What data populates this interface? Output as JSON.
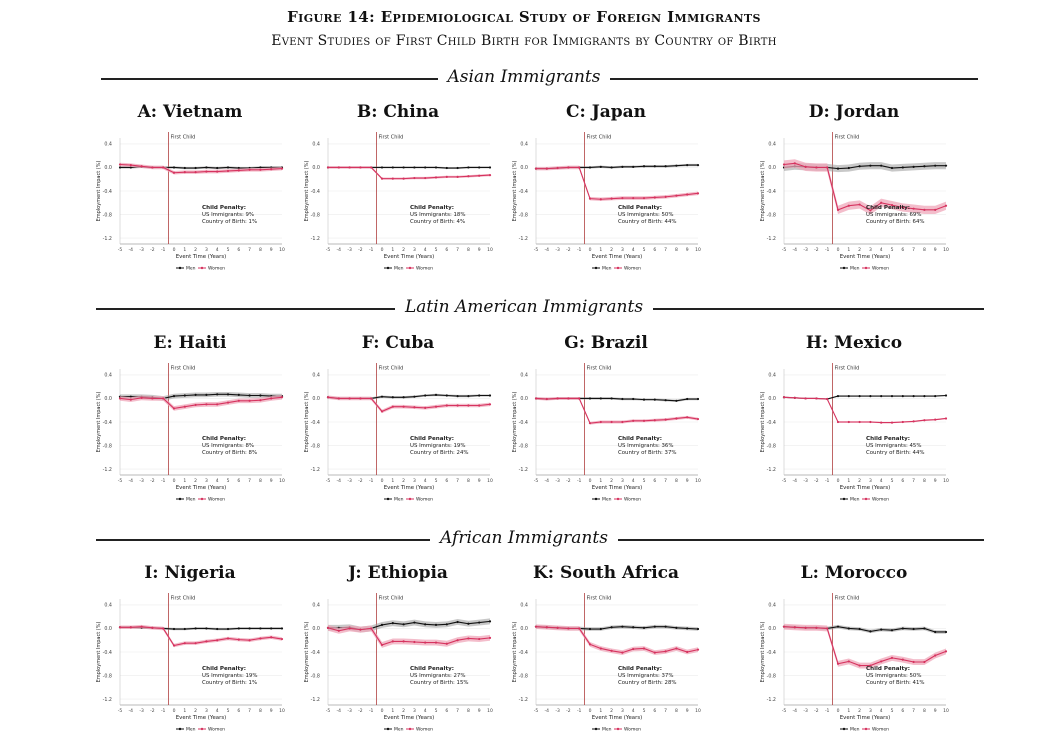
{
  "figure": {
    "title": "Figure 14: Epidemiological Study of Foreign Immigrants",
    "subtitle": "Event Studies of First Child Birth for Immigrants by Country of Birth"
  },
  "sections": [
    {
      "label": "Asian Immigrants"
    },
    {
      "label": "Latin American Immigrants"
    },
    {
      "label": "African Immigrants"
    }
  ],
  "common": {
    "xlabel": "Event Time (Years)",
    "ylabel": "Employment Impact (%)",
    "first_child_label": "First Child",
    "penalty_title": "Child Penalty:",
    "legend_men": "Men",
    "legend_women": "Women",
    "x_ticks": [
      "-5",
      "-4",
      "-3",
      "-2",
      "-1",
      "0",
      "1",
      "2",
      "3",
      "4",
      "5",
      "6",
      "7",
      "8",
      "9",
      "10"
    ],
    "y_ticks": [
      "0.4",
      "0.0",
      "-0.4",
      "-0.8",
      "-1.2"
    ],
    "colors": {
      "men": "#111111",
      "women": "#d6335f",
      "women_band": "#efa7ba",
      "men_band": "#9a9a9a",
      "event_line": "#b04040"
    }
  },
  "chart_data": [
    {
      "type": "line",
      "panel": "A: Vietnam",
      "title": "A: Vietnam",
      "penalty_us": "US Immigrants: 9%",
      "penalty_cob": "Country of Birth: 1%",
      "ylim": [
        -1.3,
        0.5
      ],
      "x": [
        -5,
        -4,
        -3,
        -2,
        -1,
        0,
        1,
        2,
        3,
        4,
        5,
        6,
        7,
        8,
        9,
        10
      ],
      "series": [
        {
          "name": "Men",
          "values": [
            0.0,
            0.0,
            0.01,
            0.0,
            0.0,
            0.0,
            -0.01,
            -0.01,
            0.0,
            -0.01,
            0.0,
            -0.01,
            -0.01,
            0.0,
            0.0,
            0.0
          ],
          "band": 0.02
        },
        {
          "name": "Women",
          "values": [
            0.05,
            0.04,
            0.02,
            0.0,
            0.0,
            -0.09,
            -0.08,
            -0.08,
            -0.07,
            -0.07,
            -0.06,
            -0.05,
            -0.04,
            -0.04,
            -0.03,
            -0.02
          ],
          "band": 0.03
        }
      ]
    },
    {
      "type": "line",
      "panel": "B: China",
      "title": "B: China",
      "penalty_us": "US Immigrants: 18%",
      "penalty_cob": "Country of Birth: 4%",
      "ylim": [
        -1.3,
        0.5
      ],
      "x": [
        -5,
        -4,
        -3,
        -2,
        -1,
        0,
        1,
        2,
        3,
        4,
        5,
        6,
        7,
        8,
        9,
        10
      ],
      "series": [
        {
          "name": "Men",
          "values": [
            0.0,
            0.0,
            0.0,
            0.0,
            0.0,
            0.0,
            0.0,
            0.0,
            0.0,
            0.0,
            0.0,
            -0.01,
            -0.01,
            0.0,
            0.0,
            0.0
          ],
          "band": 0.015
        },
        {
          "name": "Women",
          "values": [
            0.0,
            0.0,
            0.0,
            0.0,
            0.0,
            -0.19,
            -0.19,
            -0.19,
            -0.18,
            -0.18,
            -0.17,
            -0.16,
            -0.16,
            -0.15,
            -0.14,
            -0.13
          ],
          "band": 0.02
        }
      ]
    },
    {
      "type": "line",
      "panel": "C: Japan",
      "title": "C: Japan",
      "penalty_us": "US Immigrants: 50%",
      "penalty_cob": "Country of Birth: 44%",
      "ylim": [
        -1.3,
        0.5
      ],
      "x": [
        -5,
        -4,
        -3,
        -2,
        -1,
        0,
        1,
        2,
        3,
        4,
        5,
        6,
        7,
        8,
        9,
        10
      ],
      "series": [
        {
          "name": "Men",
          "values": [
            -0.02,
            -0.02,
            -0.01,
            0.0,
            0.0,
            0.0,
            0.01,
            0.0,
            0.01,
            0.01,
            0.02,
            0.02,
            0.02,
            0.03,
            0.04,
            0.04
          ],
          "band": 0.02
        },
        {
          "name": "Women",
          "values": [
            -0.02,
            -0.02,
            -0.01,
            0.0,
            0.0,
            -0.53,
            -0.54,
            -0.53,
            -0.52,
            -0.52,
            -0.52,
            -0.51,
            -0.5,
            -0.48,
            -0.46,
            -0.44
          ],
          "band": 0.03
        }
      ]
    },
    {
      "type": "line",
      "panel": "D: Jordan",
      "title": "D: Jordan",
      "penalty_us": "US Immigrants: 69%",
      "penalty_cob": "Country of Birth: 64%",
      "ylim": [
        -1.3,
        0.5
      ],
      "x": [
        -5,
        -4,
        -3,
        -2,
        -1,
        0,
        1,
        2,
        3,
        4,
        5,
        6,
        7,
        8,
        9,
        10
      ],
      "series": [
        {
          "name": "Men",
          "values": [
            0.0,
            0.02,
            0.01,
            0.0,
            0.0,
            -0.02,
            -0.01,
            0.02,
            0.03,
            0.03,
            -0.01,
            0.0,
            0.01,
            0.02,
            0.03,
            0.03
          ],
          "band": 0.06
        },
        {
          "name": "Women",
          "values": [
            0.05,
            0.07,
            0.01,
            0.0,
            0.0,
            -0.72,
            -0.65,
            -0.63,
            -0.73,
            -0.6,
            -0.64,
            -0.68,
            -0.7,
            -0.72,
            -0.72,
            -0.65
          ],
          "band": 0.07
        }
      ]
    },
    {
      "type": "line",
      "panel": "E: Haiti",
      "title": "E: Haiti",
      "penalty_us": "US Immigrants: 8%",
      "penalty_cob": "Country of Birth: 8%",
      "ylim": [
        -1.3,
        0.5
      ],
      "x": [
        -5,
        -4,
        -3,
        -2,
        -1,
        0,
        1,
        2,
        3,
        4,
        5,
        6,
        7,
        8,
        9,
        10
      ],
      "series": [
        {
          "name": "Men",
          "values": [
            0.03,
            0.03,
            0.03,
            0.02,
            0.0,
            0.04,
            0.05,
            0.06,
            0.06,
            0.07,
            0.07,
            0.06,
            0.05,
            0.05,
            0.04,
            0.04
          ],
          "band": 0.04
        },
        {
          "name": "Women",
          "values": [
            0.0,
            -0.02,
            0.01,
            0.0,
            0.0,
            -0.17,
            -0.14,
            -0.11,
            -0.1,
            -0.1,
            -0.07,
            -0.04,
            -0.04,
            -0.03,
            0.0,
            0.02
          ],
          "band": 0.04
        }
      ]
    },
    {
      "type": "line",
      "panel": "F: Cuba",
      "title": "F: Cuba",
      "penalty_us": "US Immigrants: 19%",
      "penalty_cob": "Country of Birth: 24%",
      "ylim": [
        -1.3,
        0.5
      ],
      "x": [
        -5,
        -4,
        -3,
        -2,
        -1,
        0,
        1,
        2,
        3,
        4,
        5,
        6,
        7,
        8,
        9,
        10
      ],
      "series": [
        {
          "name": "Men",
          "values": [
            0.02,
            0.0,
            0.0,
            0.0,
            0.0,
            0.03,
            0.02,
            0.02,
            0.03,
            0.05,
            0.06,
            0.05,
            0.04,
            0.04,
            0.05,
            0.05
          ],
          "band": 0.02
        },
        {
          "name": "Women",
          "values": [
            0.02,
            0.0,
            0.0,
            0.0,
            0.0,
            -0.22,
            -0.14,
            -0.14,
            -0.15,
            -0.16,
            -0.14,
            -0.12,
            -0.12,
            -0.12,
            -0.12,
            -0.1
          ],
          "band": 0.03
        }
      ]
    },
    {
      "type": "line",
      "panel": "G: Brazil",
      "title": "G: Brazil",
      "penalty_us": "US Immigrants: 36%",
      "penalty_cob": "Country of Birth: 37%",
      "ylim": [
        -1.3,
        0.5
      ],
      "x": [
        -5,
        -4,
        -3,
        -2,
        -1,
        0,
        1,
        2,
        3,
        4,
        5,
        6,
        7,
        8,
        9,
        10
      ],
      "series": [
        {
          "name": "Men",
          "values": [
            0.0,
            -0.01,
            0.0,
            0.0,
            0.0,
            0.0,
            0.0,
            0.0,
            -0.01,
            -0.01,
            -0.02,
            -0.02,
            -0.03,
            -0.04,
            -0.01,
            -0.01
          ],
          "band": 0.02
        },
        {
          "name": "Women",
          "values": [
            0.0,
            -0.01,
            0.0,
            0.0,
            0.0,
            -0.42,
            -0.4,
            -0.4,
            -0.4,
            -0.38,
            -0.38,
            -0.37,
            -0.36,
            -0.34,
            -0.32,
            -0.35
          ],
          "band": 0.025
        }
      ]
    },
    {
      "type": "line",
      "panel": "H: Mexico",
      "title": "H: Mexico",
      "penalty_us": "US Immigrants: 45%",
      "penalty_cob": "Country of Birth: 44%",
      "ylim": [
        -1.3,
        0.5
      ],
      "x": [
        -5,
        -4,
        -3,
        -2,
        -1,
        0,
        1,
        2,
        3,
        4,
        5,
        6,
        7,
        8,
        9,
        10
      ],
      "series": [
        {
          "name": "Men",
          "values": [
            0.02,
            0.01,
            0.0,
            0.0,
            -0.01,
            0.04,
            0.04,
            0.04,
            0.04,
            0.04,
            0.04,
            0.04,
            0.04,
            0.04,
            0.04,
            0.05
          ],
          "band": 0.01
        },
        {
          "name": "Women",
          "values": [
            0.02,
            0.01,
            0.0,
            0.0,
            -0.01,
            -0.4,
            -0.4,
            -0.4,
            -0.4,
            -0.41,
            -0.41,
            -0.4,
            -0.39,
            -0.37,
            -0.36,
            -0.34
          ],
          "band": 0.012
        }
      ]
    },
    {
      "type": "line",
      "panel": "I: Nigeria",
      "title": "I: Nigeria",
      "penalty_us": "US Immigrants: 19%",
      "penalty_cob": "Country of Birth: 1%",
      "ylim": [
        -1.3,
        0.5
      ],
      "x": [
        -5,
        -4,
        -3,
        -2,
        -1,
        0,
        1,
        2,
        3,
        4,
        5,
        6,
        7,
        8,
        9,
        10
      ],
      "series": [
        {
          "name": "Men",
          "values": [
            0.02,
            0.02,
            0.01,
            0.01,
            0.0,
            -0.01,
            -0.01,
            0.0,
            0.0,
            -0.01,
            -0.01,
            0.0,
            0.0,
            0.0,
            0.0,
            0.0
          ],
          "band": 0.02
        },
        {
          "name": "Women",
          "values": [
            0.02,
            0.02,
            0.03,
            0.01,
            0.0,
            -0.29,
            -0.25,
            -0.25,
            -0.22,
            -0.2,
            -0.17,
            -0.19,
            -0.2,
            -0.17,
            -0.15,
            -0.18
          ],
          "band": 0.03
        }
      ]
    },
    {
      "type": "line",
      "panel": "J: Ethiopia",
      "title": "J: Ethiopia",
      "penalty_us": "US Immigrants: 27%",
      "penalty_cob": "Country of Birth: 15%",
      "ylim": [
        -1.3,
        0.5
      ],
      "x": [
        -5,
        -4,
        -3,
        -2,
        -1,
        0,
        1,
        2,
        3,
        4,
        5,
        6,
        7,
        8,
        9,
        10
      ],
      "series": [
        {
          "name": "Men",
          "values": [
            0.01,
            0.01,
            0.02,
            -0.02,
            0.0,
            0.06,
            0.09,
            0.07,
            0.1,
            0.07,
            0.06,
            0.07,
            0.11,
            0.08,
            0.1,
            0.12
          ],
          "band": 0.05
        },
        {
          "name": "Women",
          "values": [
            0.01,
            -0.04,
            0.0,
            -0.02,
            0.0,
            -0.28,
            -0.22,
            -0.22,
            -0.23,
            -0.24,
            -0.24,
            -0.26,
            -0.2,
            -0.17,
            -0.18,
            -0.16
          ],
          "band": 0.05
        }
      ]
    },
    {
      "type": "line",
      "panel": "K: South Africa",
      "title": "K: South Africa",
      "penalty_us": "US Immigrants: 37%",
      "penalty_cob": "Country of Birth: 28%",
      "ylim": [
        -1.3,
        0.5
      ],
      "x": [
        -5,
        -4,
        -3,
        -2,
        -1,
        0,
        1,
        2,
        3,
        4,
        5,
        6,
        7,
        8,
        9,
        10
      ],
      "series": [
        {
          "name": "Men",
          "values": [
            0.03,
            0.02,
            0.01,
            0.0,
            0.0,
            -0.01,
            -0.01,
            0.02,
            0.03,
            0.02,
            0.01,
            0.03,
            0.03,
            0.01,
            0.0,
            -0.01
          ],
          "band": 0.03
        },
        {
          "name": "Women",
          "values": [
            0.03,
            0.02,
            0.01,
            0.0,
            0.0,
            -0.27,
            -0.34,
            -0.38,
            -0.41,
            -0.35,
            -0.34,
            -0.41,
            -0.39,
            -0.34,
            -0.4,
            -0.36
          ],
          "band": 0.04
        }
      ]
    },
    {
      "type": "line",
      "panel": "L: Morocco",
      "title": "L: Morocco",
      "penalty_us": "US Immigrants: 50%",
      "penalty_cob": "Country of Birth: 41%",
      "ylim": [
        -1.3,
        0.5
      ],
      "x": [
        -5,
        -4,
        -3,
        -2,
        -1,
        0,
        1,
        2,
        3,
        4,
        5,
        6,
        7,
        8,
        9,
        10
      ],
      "series": [
        {
          "name": "Men",
          "values": [
            0.03,
            0.02,
            0.01,
            0.01,
            0.0,
            0.03,
            0.0,
            -0.01,
            -0.05,
            -0.02,
            -0.03,
            0.0,
            -0.01,
            0.0,
            -0.06,
            -0.06
          ],
          "band": 0.03
        },
        {
          "name": "Women",
          "values": [
            0.03,
            0.02,
            0.01,
            0.01,
            0.0,
            -0.6,
            -0.56,
            -0.63,
            -0.63,
            -0.56,
            -0.5,
            -0.53,
            -0.57,
            -0.57,
            -0.46,
            -0.39
          ],
          "band": 0.05
        }
      ]
    }
  ]
}
